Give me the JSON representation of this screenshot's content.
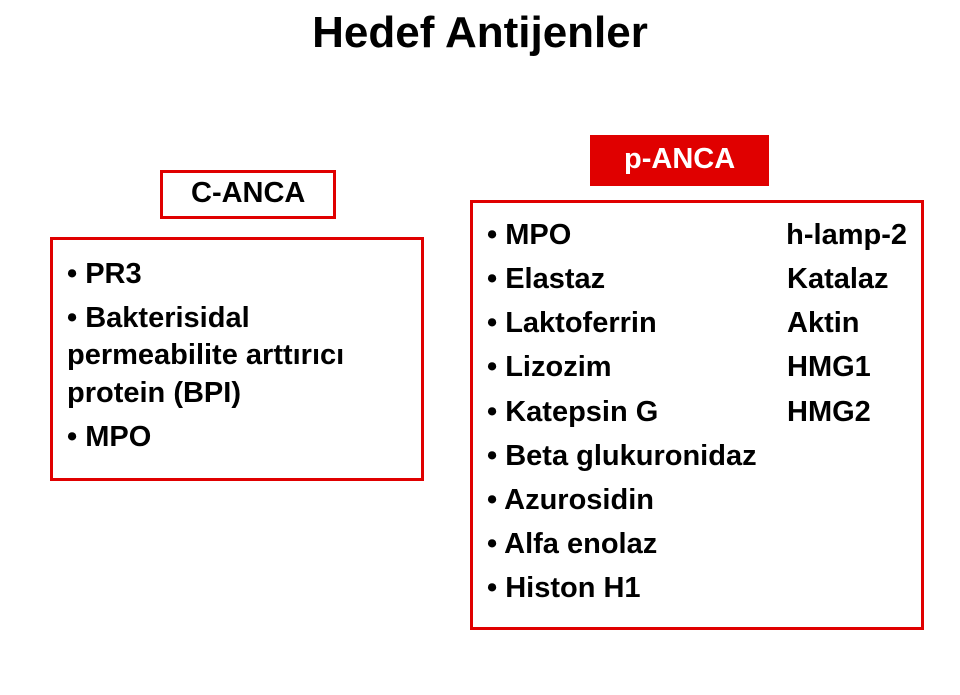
{
  "title": "Hedef Antijenler",
  "left": {
    "heading": "C-ANCA",
    "items": [
      "• PR3",
      "• Bakterisidal permeabilite arttırıcı protein (BPI)",
      "• MPO"
    ]
  },
  "right": {
    "heading": "p-ANCA",
    "rows": [
      {
        "l": "• MPO",
        "r": "h-lamp-2"
      },
      {
        "l": "• Elastaz",
        "r": "Katalaz"
      },
      {
        "l": "• Laktoferrin",
        "r": "Aktin"
      },
      {
        "l": "• Lizozim",
        "r": "HMG1"
      },
      {
        "l": "• Katepsin G",
        "r": "HMG2"
      }
    ],
    "tail": [
      "• Beta glukuronidaz",
      "• Azurosidin",
      "• Alfa enolaz",
      "• Histon H1"
    ]
  },
  "colors": {
    "accent": "#e00000",
    "background": "#ffffff",
    "text": "#000000"
  },
  "fonts": {
    "title_size_pt": 44,
    "body_size_pt": 29,
    "weight": 700
  }
}
